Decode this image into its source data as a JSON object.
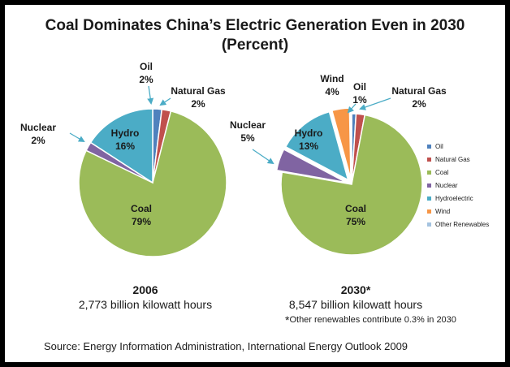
{
  "title_line1": "Coal Dominates China’s Electric Generation Even in 2030",
  "title_line2": "(Percent)",
  "chart_data": {
    "type": "pie",
    "pies": [
      {
        "year_label": "2006",
        "total_label": "2,773 billion kilowatt hours",
        "slices": [
          {
            "name": "Oil",
            "value": 2,
            "label": "2%"
          },
          {
            "name": "Natural Gas",
            "value": 2,
            "label": "2%"
          },
          {
            "name": "Coal",
            "value": 79,
            "label": "79%"
          },
          {
            "name": "Nuclear",
            "value": 2,
            "label": "2%"
          },
          {
            "name": "Hydro",
            "value": 16,
            "label": "16%"
          }
        ]
      },
      {
        "year_label": "2030*",
        "total_label": "8,547 billion kilowatt hours",
        "slices": [
          {
            "name": "Oil",
            "value": 1,
            "label": "1%"
          },
          {
            "name": "Natural Gas",
            "value": 2,
            "label": "2%"
          },
          {
            "name": "Coal",
            "value": 75,
            "label": "75%"
          },
          {
            "name": "Nuclear",
            "value": 5,
            "label": "5%"
          },
          {
            "name": "Hydro",
            "value": 13,
            "label": "13%"
          },
          {
            "name": "Wind",
            "value": 4,
            "label": "4%"
          },
          {
            "name": "Other Renewables",
            "value": 0.3,
            "label": ""
          }
        ]
      }
    ],
    "legend": [
      "Oil",
      "Natural Gas",
      "Coal",
      "Nuclear",
      "Hydroelectric",
      "Wind",
      "Other Renewables"
    ],
    "legend_placement": "right",
    "colors": {
      "Oil": "#4f81bd",
      "Natural Gas": "#c0504d",
      "Coal": "#9bbb59",
      "Nuclear": "#8064a2",
      "Hydro": "#4bacc6",
      "Wind": "#f79646",
      "Other Renewables": "#a5c3e0"
    }
  },
  "footnote_star": "*",
  "footnote_text": "Other renewables contribute 0.3% in 2030",
  "source": "Source: Energy Information Administration, International Energy Outlook 2009"
}
